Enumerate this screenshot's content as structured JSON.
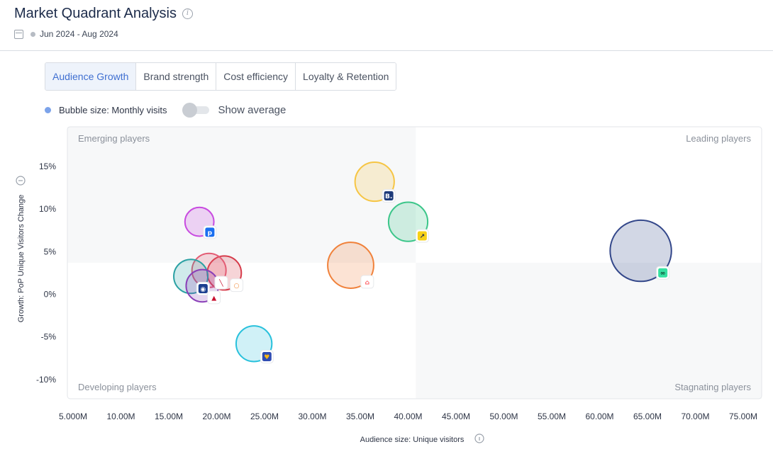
{
  "header": {
    "title": "Market Quadrant Analysis",
    "date_range": "Jun 2024 - Aug 2024"
  },
  "tabs": [
    {
      "label": "Audience Growth",
      "active": true
    },
    {
      "label": "Brand strength",
      "active": false
    },
    {
      "label": "Cost efficiency",
      "active": false
    },
    {
      "label": "Loyalty & Retention",
      "active": false
    }
  ],
  "legend": {
    "bubble_size_label": "Bubble size: Monthly visits",
    "show_average_label": "Show average",
    "show_average_on": false
  },
  "chart_data": {
    "type": "scatter",
    "xlabel": "Audience size: Unique visitors",
    "ylabel": "Growth: PoP Unique Visitors Change",
    "xlim": [
      4.0,
      76.0
    ],
    "ylim": [
      -12.0,
      19.5
    ],
    "x_ticks": [
      5,
      10,
      15,
      20,
      25,
      30,
      35,
      40,
      45,
      50,
      55,
      60,
      65,
      70,
      75
    ],
    "x_tick_labels": [
      "5.000M",
      "10.00M",
      "15.00M",
      "20.00M",
      "25.00M",
      "30.00M",
      "35.00M",
      "40.00M",
      "45.00M",
      "50.00M",
      "55.00M",
      "60.00M",
      "65.00M",
      "70.00M",
      "75.00M"
    ],
    "y_ticks": [
      15,
      10,
      5,
      0,
      -5,
      -10
    ],
    "y_tick_labels": [
      "15%",
      "10%",
      "5%",
      "0%",
      "-5%",
      "-10%"
    ],
    "quadrant_divider": {
      "x": 40.8,
      "y": 3.7
    },
    "quadrants": {
      "top_left": "Emerging players",
      "top_right": "Leading players",
      "bottom_left": "Developing players",
      "bottom_right": "Stagnating players"
    },
    "grid": false,
    "points": [
      {
        "x": 36.5,
        "y": 13.2,
        "size": 2.3,
        "color": "#f6c544",
        "icon": "booking-icon"
      },
      {
        "x": 40.0,
        "y": 8.5,
        "size": 2.3,
        "color": "#3cc68a",
        "icon": "expedia-icon"
      },
      {
        "x": 18.2,
        "y": 8.5,
        "size": 1.7,
        "color": "#c84be0",
        "icon": "priceline-icon"
      },
      {
        "x": 34.0,
        "y": 3.4,
        "size": 2.7,
        "color": "#f0813a",
        "icon": "airbnb-icon"
      },
      {
        "x": 64.3,
        "y": 5.1,
        "size": 3.6,
        "color": "#33478a",
        "icon": "tripadvisor-icon"
      },
      {
        "x": 20.8,
        "y": 2.5,
        "size": 2.0,
        "color": "#d63b4a",
        "icon": "hotels-icon"
      },
      {
        "x": 19.2,
        "y": 2.8,
        "size": 2.0,
        "color": "#e35c74",
        "icon": "american-airlines-icon"
      },
      {
        "x": 17.3,
        "y": 2.1,
        "size": 2.0,
        "color": "#2aa1a3",
        "icon": "united-icon"
      },
      {
        "x": 18.5,
        "y": 1.0,
        "size": 1.9,
        "color": "#8a3fb8",
        "icon": "delta-icon"
      },
      {
        "x": 23.9,
        "y": -5.8,
        "size": 2.1,
        "color": "#29c1dc",
        "icon": "southwest-icon"
      }
    ]
  }
}
